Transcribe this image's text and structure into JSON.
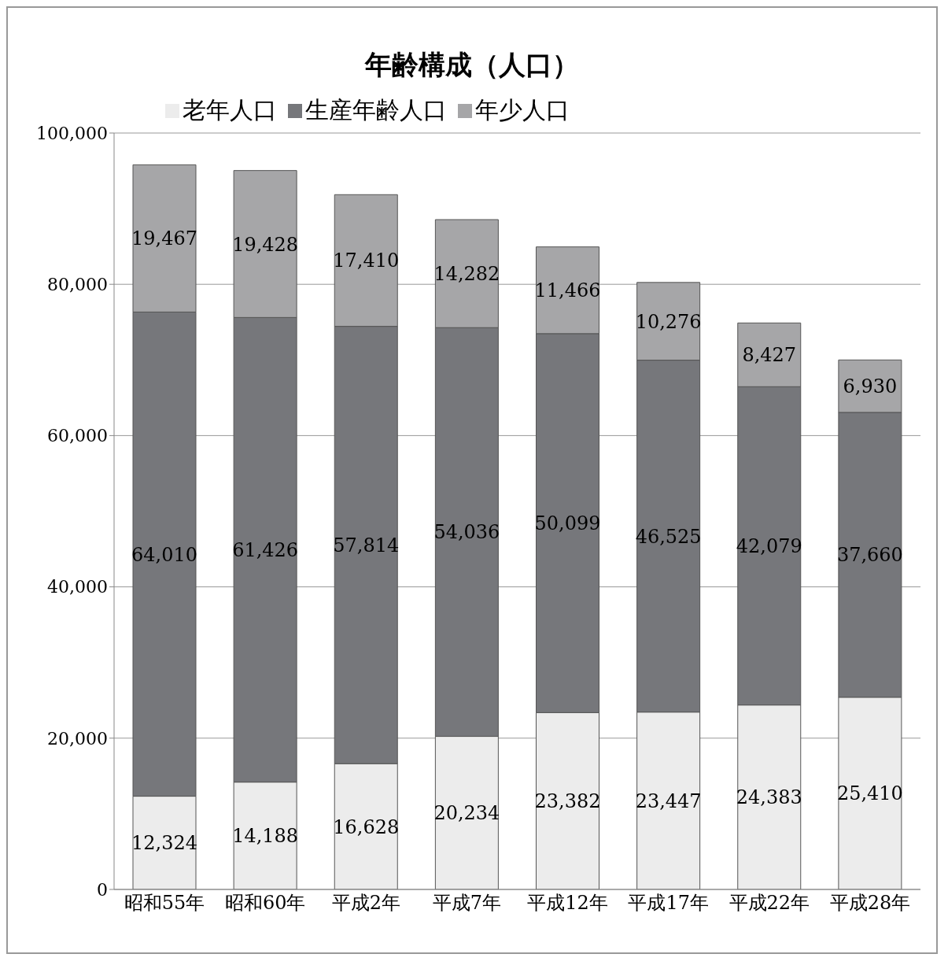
{
  "chart_data": {
    "type": "bar",
    "title": "年齢構成（人口）",
    "stacked": true,
    "categories": [
      "昭和55年",
      "昭和60年",
      "平成2年",
      "平成7年",
      "平成12年",
      "平成17年",
      "平成22年",
      "平成28年"
    ],
    "series": [
      {
        "name": "老年人口",
        "color": "#ececec",
        "values": [
          12324,
          14188,
          16628,
          20234,
          23382,
          23447,
          24383,
          25410
        ],
        "value_labels": [
          "12,324",
          "14,188",
          "16,628",
          "20,234",
          "23,382",
          "23,447",
          "24,383",
          "25,410"
        ]
      },
      {
        "name": "生産年齢人口",
        "color": "#76777b",
        "values": [
          64010,
          61426,
          57814,
          54036,
          50099,
          46525,
          42079,
          37660
        ],
        "value_labels": [
          "64,010",
          "61,426",
          "57,814",
          "54,036",
          "50,099",
          "46,525",
          "42,079",
          "37,660"
        ]
      },
      {
        "name": "年少人口",
        "color": "#a6a6a8",
        "values": [
          19467,
          19428,
          17410,
          14282,
          11466,
          10276,
          8427,
          6930
        ],
        "value_labels": [
          "19,467",
          "19,428",
          "17,410",
          "14,282",
          "11,466",
          "10,276",
          "8,427",
          "6,930"
        ]
      }
    ],
    "ylim": [
      0,
      100000
    ],
    "yticks": [
      {
        "value": 0,
        "label": "0"
      },
      {
        "value": 20000,
        "label": "20,000"
      },
      {
        "value": 40000,
        "label": "40,000"
      },
      {
        "value": 60000,
        "label": "60,000"
      },
      {
        "value": 80000,
        "label": "80,000"
      },
      {
        "value": 100000,
        "label": "100,000"
      }
    ],
    "grid": "y",
    "legend": "top"
  }
}
